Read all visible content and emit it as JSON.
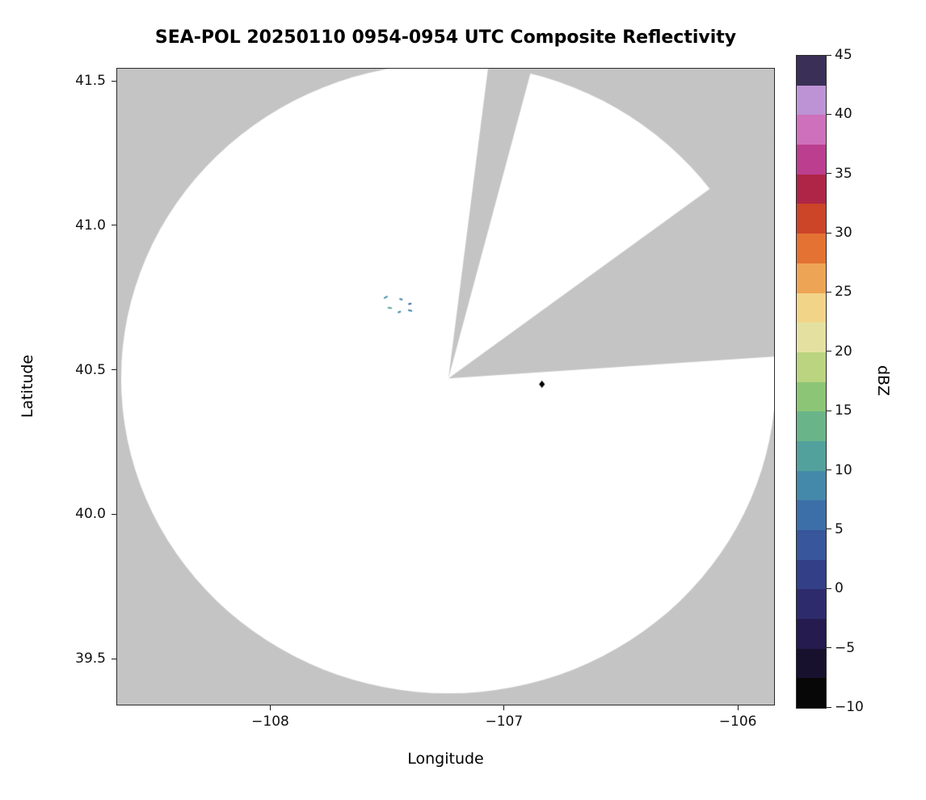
{
  "chart_data": {
    "type": "radar_ppi",
    "title": "SEA-POL 20250110 0954-0954 UTC Composite Reflectivity",
    "xlabel": "Longitude",
    "ylabel": "Latitude",
    "xlim": [
      -108.655,
      -105.845
    ],
    "ylim": [
      39.341,
      41.542
    ],
    "grid": false,
    "x_ticks": [
      {
        "value": -108,
        "label": "−108"
      },
      {
        "value": -107,
        "label": "−107"
      },
      {
        "value": -106,
        "label": "−106"
      }
    ],
    "y_ticks": [
      {
        "value": 41.5,
        "label": "41.5"
      },
      {
        "value": 41.0,
        "label": "41.0"
      },
      {
        "value": 40.5,
        "label": "40.5"
      },
      {
        "value": 40.0,
        "label": "40.0"
      },
      {
        "value": 39.5,
        "label": "39.5"
      }
    ],
    "colors": {
      "outside_coverage": "#c4c4c4",
      "coverage": "#ffffff",
      "frame": "#2b2b2b",
      "text": "#000000"
    },
    "radar": {
      "center_lon": -107.238,
      "center_lat": 40.47,
      "radius_deg_lon": 1.4,
      "radius_deg_lat": 1.09,
      "blocked_sectors_azimuth_deg": [
        {
          "from": 7,
          "to": 14.5
        },
        {
          "from": 53,
          "to": 86
        }
      ]
    },
    "echoes": [
      {
        "lon": -107.506,
        "lat": 40.751,
        "dbz": 5,
        "color": "#4a93ad",
        "w": 5,
        "h": 2,
        "rot": -30
      },
      {
        "lon": -107.441,
        "lat": 40.744,
        "dbz": 5,
        "color": "#3f7fa8",
        "w": 4,
        "h": 2,
        "rot": 20
      },
      {
        "lon": -107.403,
        "lat": 40.728,
        "dbz": 3,
        "color": "#3a6da7",
        "w": 4,
        "h": 2,
        "rot": -15
      },
      {
        "lon": -107.489,
        "lat": 40.714,
        "dbz": 8,
        "color": "#4f9f9f",
        "w": 5,
        "h": 2,
        "rot": 10
      },
      {
        "lon": -107.448,
        "lat": 40.7,
        "dbz": 5,
        "color": "#4189a9",
        "w": 4,
        "h": 2,
        "rot": -25
      },
      {
        "lon": -107.402,
        "lat": 40.705,
        "dbz": 5,
        "color": "#3f7fa8",
        "w": 5,
        "h": 2,
        "rot": 15
      }
    ],
    "point_marker": {
      "lon": -106.838,
      "lat": 40.45,
      "shape": "diamond",
      "color": "#000000",
      "size": 9
    },
    "colorbar": {
      "label": "dBZ",
      "min": -10,
      "max": 45,
      "ticks": [
        {
          "value": 45,
          "label": "45"
        },
        {
          "value": 40,
          "label": "40"
        },
        {
          "value": 35,
          "label": "35"
        },
        {
          "value": 30,
          "label": "30"
        },
        {
          "value": 25,
          "label": "25"
        },
        {
          "value": 20,
          "label": "20"
        },
        {
          "value": 15,
          "label": "15"
        },
        {
          "value": 10,
          "label": "10"
        },
        {
          "value": 5,
          "label": "5"
        },
        {
          "value": 0,
          "label": "0"
        },
        {
          "value": -5,
          "label": "−5"
        },
        {
          "value": -10,
          "label": "−10"
        }
      ],
      "colors_bottom_to_top": [
        "#070707",
        "#18112e",
        "#251b4e",
        "#2e2b6c",
        "#333f87",
        "#38569c",
        "#3c6fa7",
        "#4489a9",
        "#52a19c",
        "#69b589",
        "#8cc575",
        "#bad47f",
        "#e4e1a0",
        "#f2d488",
        "#eda455",
        "#e37233",
        "#cc4529",
        "#ae2548",
        "#bb3f8e",
        "#cf70bc",
        "#bd93d6",
        "#3a3057"
      ]
    }
  }
}
